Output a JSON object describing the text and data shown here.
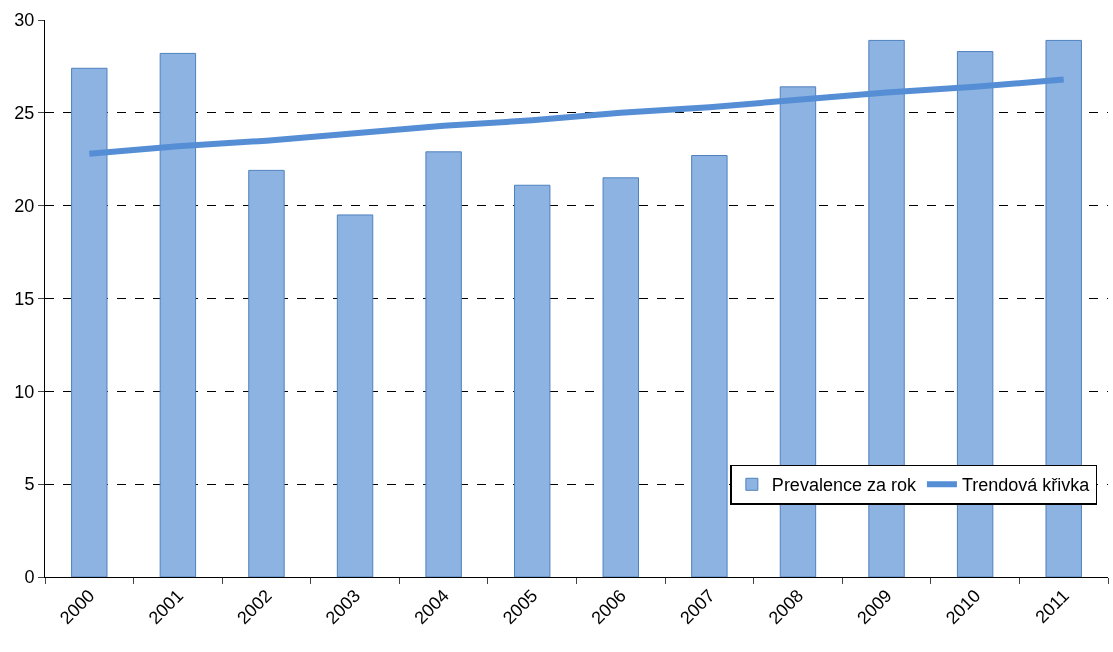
{
  "chart_data": {
    "type": "bar",
    "categories": [
      "2000",
      "2001",
      "2002",
      "2003",
      "2004",
      "2005",
      "2006",
      "2007",
      "2008",
      "2009",
      "2010",
      "2011"
    ],
    "series": [
      {
        "name": "Prevalence za rok",
        "color": "#8db3e2",
        "values": [
          27.4,
          28.2,
          21.9,
          19.5,
          22.9,
          21.1,
          21.5,
          22.7,
          26.4,
          28.9,
          28.3,
          28.9
        ]
      },
      {
        "name": "Trendová křivka",
        "type": "line",
        "color": "#558ed5",
        "values": [
          22.8,
          23.2,
          23.5,
          23.9,
          24.3,
          24.6,
          25.0,
          25.3,
          25.7,
          26.1,
          26.4,
          26.8
        ]
      }
    ],
    "ylim": [
      0,
      30
    ],
    "yticks": [
      0,
      5,
      10,
      15,
      20,
      25,
      30
    ],
    "grid": "y",
    "line_style": "solid",
    "legend": "bottom right"
  }
}
